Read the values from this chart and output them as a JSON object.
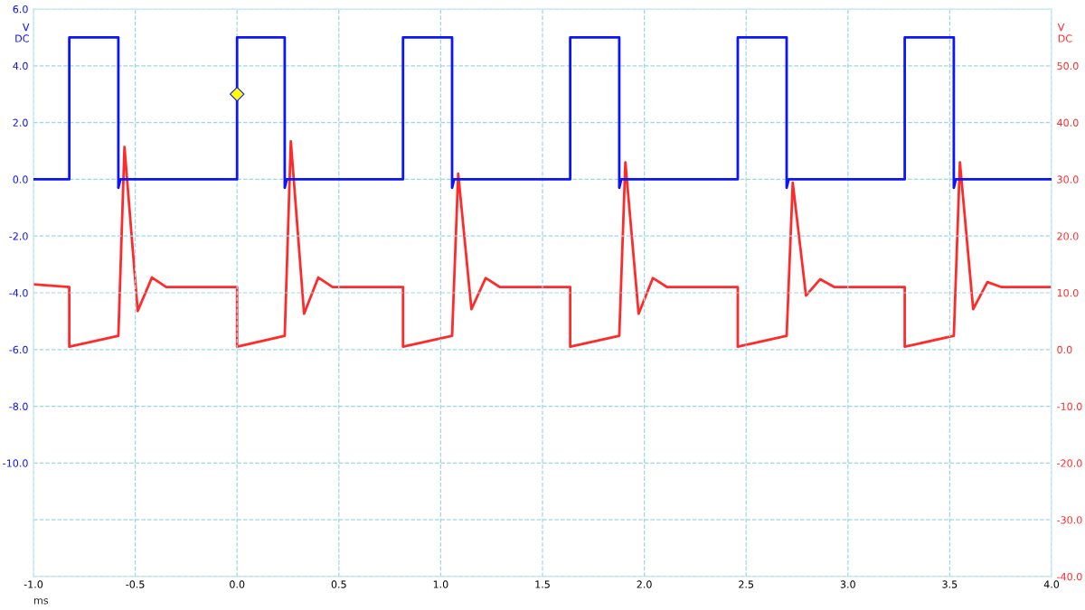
{
  "chart_data": {
    "type": "line",
    "xlabel": "ms",
    "ylabel": "V\nDC",
    "y2label": "V\nDC",
    "xlim": [
      -1.0,
      4.0
    ],
    "xticks": [
      {
        "value": -1.0,
        "label": "-1.0"
      },
      {
        "value": -0.5,
        "label": "-0.5"
      },
      {
        "value": 0.0,
        "label": "0.0"
      },
      {
        "value": 0.5,
        "label": "0.5"
      },
      {
        "value": 1.0,
        "label": "1.0"
      },
      {
        "value": 1.5,
        "label": "1.5"
      },
      {
        "value": 2.0,
        "label": "2.0"
      },
      {
        "value": 2.5,
        "label": "2.5"
      },
      {
        "value": 3.0,
        "label": "3.0"
      },
      {
        "value": 3.5,
        "label": "3.5"
      },
      {
        "value": 4.0,
        "label": "4.0"
      }
    ],
    "ylim": [
      -14,
      6
    ],
    "yticks": [
      {
        "value": 6,
        "label": "6.0"
      },
      {
        "value": 4,
        "label": "4.0"
      },
      {
        "value": 2,
        "label": "2.0"
      },
      {
        "value": 0,
        "label": "0.0"
      },
      {
        "value": -2,
        "label": "-2.0"
      },
      {
        "value": -4,
        "label": "-4.0"
      },
      {
        "value": -6,
        "label": "-6.0"
      },
      {
        "value": -8,
        "label": "-8.0"
      },
      {
        "value": -10,
        "label": "-10.0"
      },
      {
        "value": -12,
        "label": null
      },
      {
        "value": -14,
        "label": null
      }
    ],
    "y2lim": [
      -40,
      60
    ],
    "y2ticks": [
      {
        "value": 60,
        "label": null
      },
      {
        "value": 50,
        "label": "50.0"
      },
      {
        "value": 40,
        "label": "40.0"
      },
      {
        "value": 30,
        "label": "30.0"
      },
      {
        "value": 20,
        "label": "20.0"
      },
      {
        "value": 10,
        "label": "10.0"
      },
      {
        "value": 0,
        "label": "0.0"
      },
      {
        "value": -10,
        "label": "-10.0"
      },
      {
        "value": -20,
        "label": "-20.0"
      },
      {
        "value": -30,
        "label": "-30.0"
      },
      {
        "value": -40,
        "label": "-40.0"
      }
    ],
    "grid": true,
    "marker": "none",
    "line_style": "solid",
    "series": [
      {
        "color": "#ff2a2a",
        "axis": "y2",
        "x": [
          -1.0,
          -0.824,
          -0.824,
          -0.583,
          -0.553,
          -0.488,
          -0.418,
          -0.348,
          0.0,
          0.0,
          0.234,
          0.264,
          0.329,
          0.399,
          0.469,
          0.815,
          0.815,
          1.056,
          1.086,
          1.151,
          1.221,
          1.291,
          1.636,
          1.636,
          1.877,
          1.907,
          1.972,
          2.042,
          2.112,
          2.459,
          2.459,
          2.699,
          2.729,
          2.794,
          2.864,
          2.934,
          3.279,
          3.279,
          3.52,
          3.55,
          3.615,
          3.685,
          3.755,
          4.0
        ],
        "values": [
          11.5,
          11,
          0.5,
          2.4,
          35.7,
          6.8,
          12.7,
          11,
          11,
          0.5,
          2.4,
          36.7,
          6.3,
          12.7,
          11,
          11,
          0.5,
          2.4,
          31.0,
          7.1,
          12.6,
          11,
          11,
          0.5,
          2.4,
          33.0,
          6.3,
          12.6,
          11,
          11,
          0.5,
          2.4,
          29.4,
          9.5,
          12.4,
          11,
          11,
          0.5,
          2.4,
          33.0,
          7.1,
          11.9,
          11,
          11
        ]
      },
      {
        "color": "#0a14ff",
        "x": [
          -1.0,
          -0.824,
          -0.824,
          -0.583,
          -0.583,
          -0.573,
          0.0,
          0.0,
          0.234,
          0.234,
          0.244,
          0.815,
          0.815,
          1.056,
          1.056,
          1.066,
          1.636,
          1.636,
          1.877,
          1.877,
          1.887,
          2.459,
          2.459,
          2.699,
          2.699,
          2.709,
          3.279,
          3.279,
          3.52,
          3.52,
          3.53,
          4.0
        ],
        "values": [
          0,
          0,
          5.0,
          5.0,
          -0.3,
          0,
          0,
          5.0,
          5.0,
          -0.3,
          0,
          0,
          5.0,
          5.0,
          -0.3,
          0,
          0,
          5.0,
          5.0,
          -0.3,
          0,
          0,
          5.0,
          5.0,
          -0.3,
          0,
          0,
          5.0,
          5.0,
          -0.3,
          0,
          0
        ]
      },
      {
        "type": "scatter",
        "color": "#ffff00",
        "marker": "diamond",
        "x": [
          0.0
        ],
        "values": [
          3.0
        ]
      }
    ]
  }
}
